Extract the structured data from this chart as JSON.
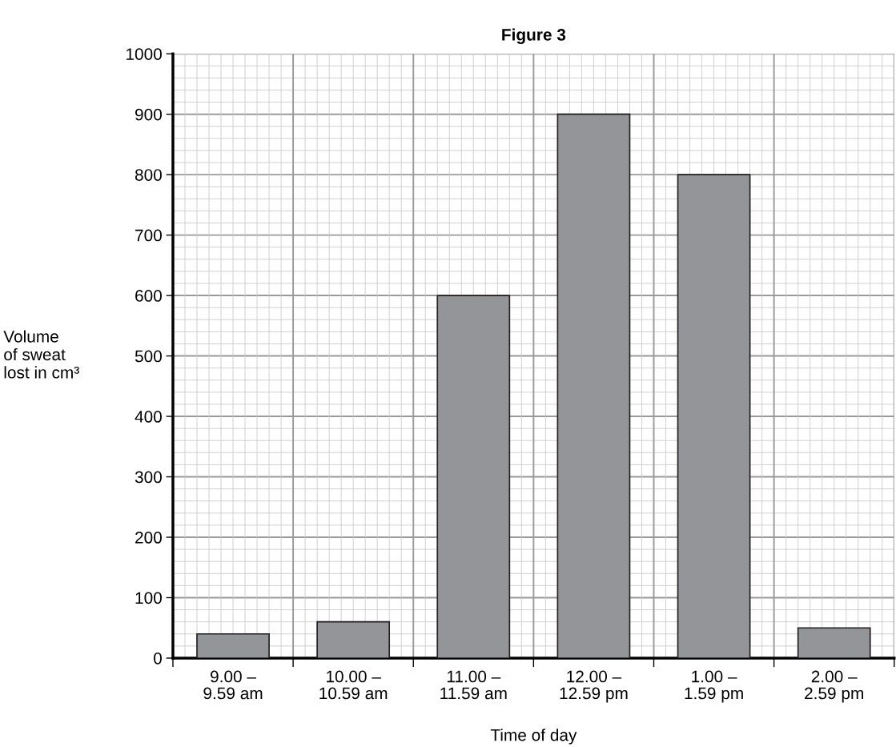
{
  "chart_data": {
    "type": "bar",
    "title": "Figure 3",
    "xlabel": "Time of day",
    "ylabel": "Volume\nof sweat\nlost in cm³",
    "categories": [
      "9.00 –\n9.59 am",
      "10.00 –\n10.59 am",
      "11.00 –\n11.59 am",
      "12.00 –\n12.59 pm",
      "1.00 –\n1.59 pm",
      "2.00 –\n2.59 pm"
    ],
    "values": [
      40,
      60,
      600,
      900,
      800,
      50
    ],
    "color": "#939598",
    "ylim": [
      0,
      1000
    ],
    "yticks": [
      0,
      100,
      200,
      300,
      400,
      500,
      600,
      700,
      800,
      900,
      1000
    ],
    "grid": true
  }
}
